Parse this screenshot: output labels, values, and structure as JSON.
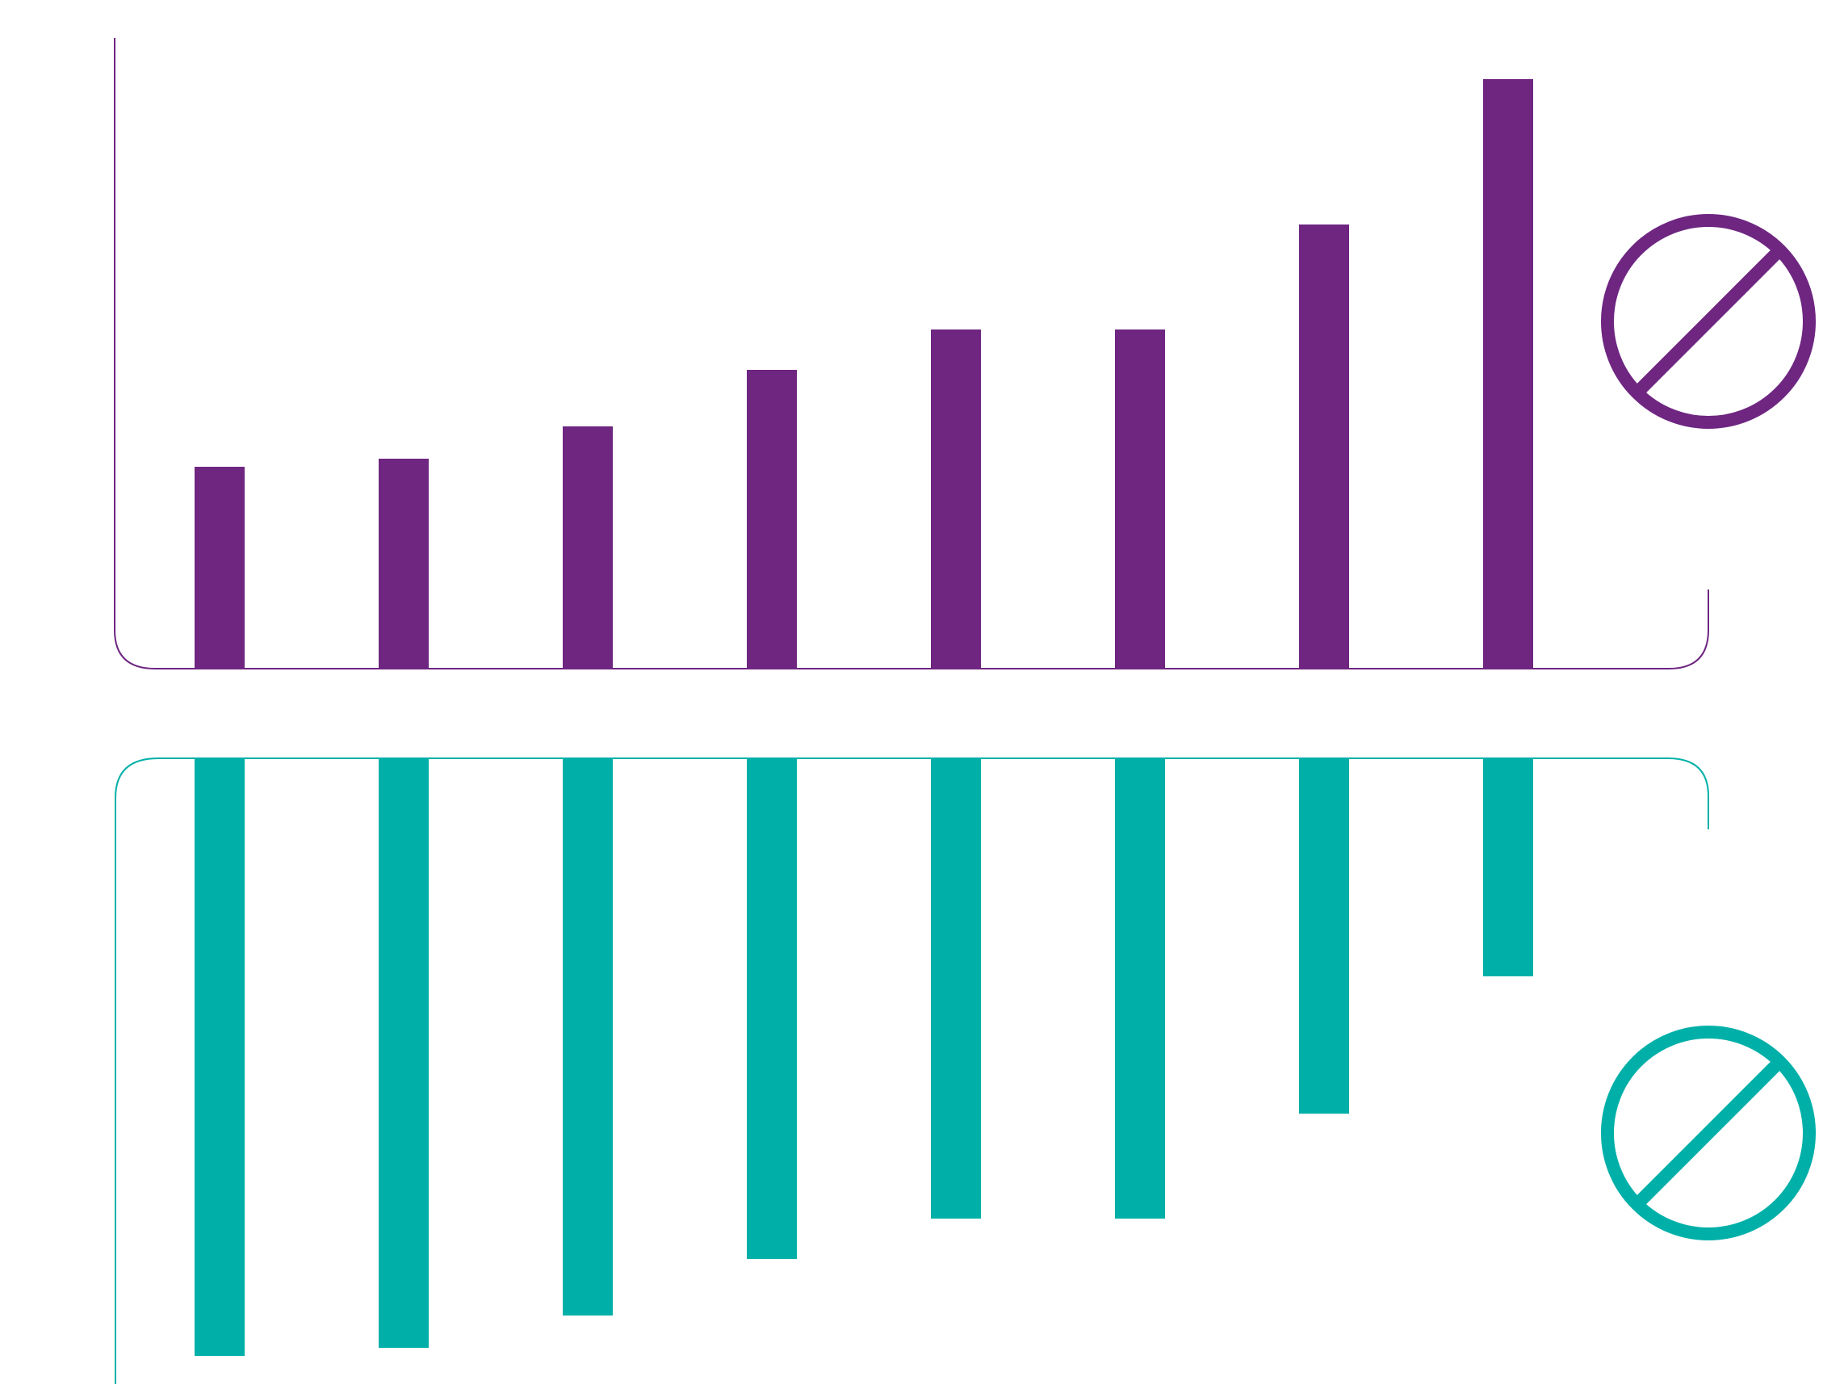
{
  "colors": {
    "top": "#6e2681",
    "bottom": "#00b0a8",
    "background": "#ffffff"
  },
  "chart_data": [
    {
      "type": "bar",
      "orientation": "up",
      "categories": [
        "",
        "",
        "",
        "",
        "",
        "",
        "",
        ""
      ],
      "values": [
        25,
        26,
        30,
        37,
        42,
        42,
        55,
        73
      ],
      "ylim": [
        0,
        78
      ],
      "grid": false,
      "legend": "none",
      "icon": "prohibited-icon",
      "color": "#6e2681"
    },
    {
      "type": "bar",
      "orientation": "down",
      "categories": [
        "",
        "",
        "",
        "",
        "",
        "",
        "",
        ""
      ],
      "values": [
        74,
        73,
        69,
        62,
        57,
        57,
        44,
        27
      ],
      "ylim": [
        0,
        78
      ],
      "grid": false,
      "legend": "none",
      "icon": "prohibited-icon",
      "color": "#00b0a8"
    }
  ]
}
